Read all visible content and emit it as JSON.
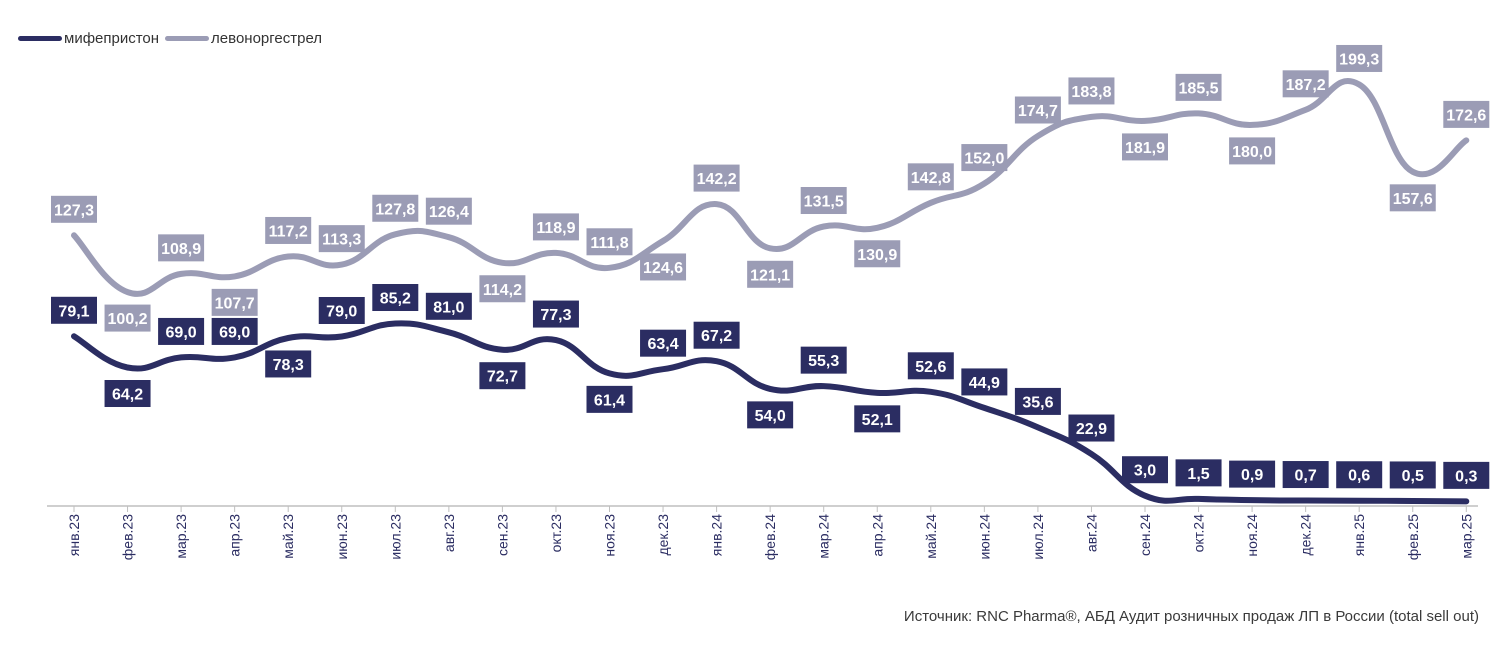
{
  "legend": [
    {
      "label": "мифепристон",
      "color": "#2b2d62"
    },
    {
      "label": "левоноргестрел",
      "color": "#9b9cb5"
    }
  ],
  "source": "Источник: RNC Pharma®, АБД Аудит розничных продаж ЛП в России (total sell out)",
  "chart_data": {
    "type": "line",
    "categories": [
      "янв.23",
      "фев.23",
      "мар.23",
      "апр.23",
      "май.23",
      "июн.23",
      "июл.23",
      "авг.23",
      "сен.23",
      "окт.23",
      "ноя.23",
      "дек.23",
      "янв.24",
      "фев.24",
      "мар.24",
      "апр.24",
      "май.24",
      "июн.24",
      "июл.24",
      "авг.24",
      "сен.24",
      "окт.24",
      "ноя.24",
      "дек.24",
      "янв.25",
      "фев.25",
      "мар.25"
    ],
    "series": [
      {
        "name": "мифепристон",
        "color": "#2b2d62",
        "values": [
          79.1,
          64.2,
          69.0,
          69.0,
          78.3,
          79.0,
          85.2,
          81.0,
          72.7,
          77.3,
          61.4,
          63.4,
          67.2,
          54.0,
          55.3,
          52.1,
          52.6,
          44.9,
          35.6,
          22.9,
          3.0,
          1.5,
          0.9,
          0.7,
          0.6,
          0.5,
          0.3
        ],
        "labels": [
          "79,1",
          "64,2",
          "69,0",
          "69,0",
          "78,3",
          "79,0",
          "85,2",
          "81,0",
          "72,7",
          "77,3",
          "61,4",
          "63,4",
          "67,2",
          "54,0",
          "55,3",
          "52,1",
          "52,6",
          "44,9",
          "35,6",
          "22,9",
          "3,0",
          "1,5",
          "0,9",
          "0,7",
          "0,6",
          "0,5",
          "0,3"
        ],
        "label_side": [
          "above",
          "below",
          "above",
          "above",
          "below",
          "above",
          "above",
          "above",
          "below",
          "above",
          "below",
          "above",
          "above",
          "below",
          "above",
          "below",
          "above",
          "above",
          "above",
          "above",
          "above",
          "above",
          "above",
          "above",
          "above",
          "above",
          "above"
        ]
      },
      {
        "name": "левоноргестрел",
        "color": "#9b9cb5",
        "values": [
          127.3,
          100.2,
          108.9,
          107.7,
          117.2,
          113.3,
          127.8,
          126.4,
          114.2,
          118.9,
          111.8,
          124.6,
          142.2,
          121.1,
          131.5,
          130.9,
          142.8,
          152.0,
          174.7,
          183.8,
          181.9,
          185.5,
          180.0,
          187.2,
          199.3,
          157.6,
          172.6
        ],
        "labels": [
          "127,3",
          "100,2",
          "108,9",
          "107,7",
          "117,2",
          "113,3",
          "127,8",
          "126,4",
          "114,2",
          "118,9",
          "111,8",
          "124,6",
          "142,2",
          "121,1",
          "131,5",
          "130,9",
          "142,8",
          "152,0",
          "174,7",
          "183,8",
          "181,9",
          "185,5",
          "180,0",
          "187,2",
          "199,3",
          "157,6",
          "172,6"
        ],
        "label_side": [
          "above",
          "below",
          "above",
          "below",
          "above",
          "above",
          "above",
          "above",
          "below",
          "above",
          "above",
          "below",
          "above",
          "below",
          "above",
          "below",
          "above",
          "above",
          "above",
          "above",
          "below",
          "above",
          "below",
          "above",
          "above",
          "below",
          "above"
        ]
      }
    ],
    "ylim": [
      0,
      205
    ],
    "xlabel": "",
    "ylabel": "",
    "grid": false,
    "legend_position": "top-left"
  }
}
